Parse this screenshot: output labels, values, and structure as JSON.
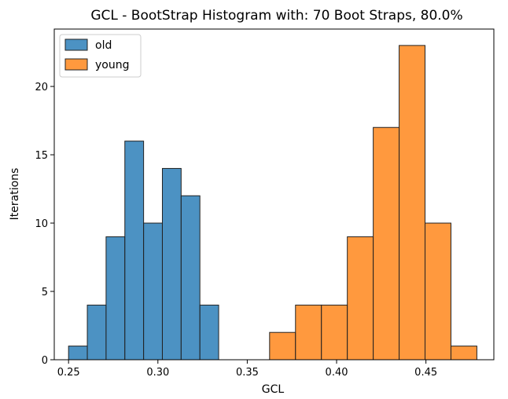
{
  "chart_data": {
    "type": "bar",
    "title": "GCL - BootStrap Histogram with: 70 Boot Straps, 80.0%",
    "xlabel": "GCL",
    "ylabel": "Iterations",
    "xlim": [
      0.242,
      0.488
    ],
    "ylim": [
      0,
      24.2
    ],
    "xticks": [
      0.25,
      0.3,
      0.35,
      0.4,
      0.45
    ],
    "xtick_labels": [
      "0.25",
      "0.30",
      "0.35",
      "0.40",
      "0.45"
    ],
    "yticks": [
      0,
      5,
      10,
      15,
      20
    ],
    "ytick_labels": [
      "0",
      "5",
      "10",
      "15",
      "20"
    ],
    "grid": false,
    "legend_position": "upper-left",
    "series": [
      {
        "name": "old",
        "color": "#1f77b4",
        "bins": [
          {
            "x0": 0.25,
            "x1": 0.2605,
            "count": 1
          },
          {
            "x0": 0.2605,
            "x1": 0.271,
            "count": 4
          },
          {
            "x0": 0.271,
            "x1": 0.2815,
            "count": 9
          },
          {
            "x0": 0.2815,
            "x1": 0.292,
            "count": 16
          },
          {
            "x0": 0.292,
            "x1": 0.3025,
            "count": 10
          },
          {
            "x0": 0.3025,
            "x1": 0.313,
            "count": 14
          },
          {
            "x0": 0.313,
            "x1": 0.3235,
            "count": 12
          },
          {
            "x0": 0.3235,
            "x1": 0.334,
            "count": 4
          }
        ]
      },
      {
        "name": "young",
        "color": "#ff7f0e",
        "bins": [
          {
            "x0": 0.3625,
            "x1": 0.377,
            "count": 2
          },
          {
            "x0": 0.377,
            "x1": 0.3915,
            "count": 4
          },
          {
            "x0": 0.3915,
            "x1": 0.406,
            "count": 4
          },
          {
            "x0": 0.406,
            "x1": 0.4205,
            "count": 9
          },
          {
            "x0": 0.4205,
            "x1": 0.435,
            "count": 17
          },
          {
            "x0": 0.435,
            "x1": 0.4495,
            "count": 23
          },
          {
            "x0": 0.4495,
            "x1": 0.464,
            "count": 10
          },
          {
            "x0": 0.464,
            "x1": 0.4785,
            "count": 1
          }
        ]
      }
    ]
  }
}
